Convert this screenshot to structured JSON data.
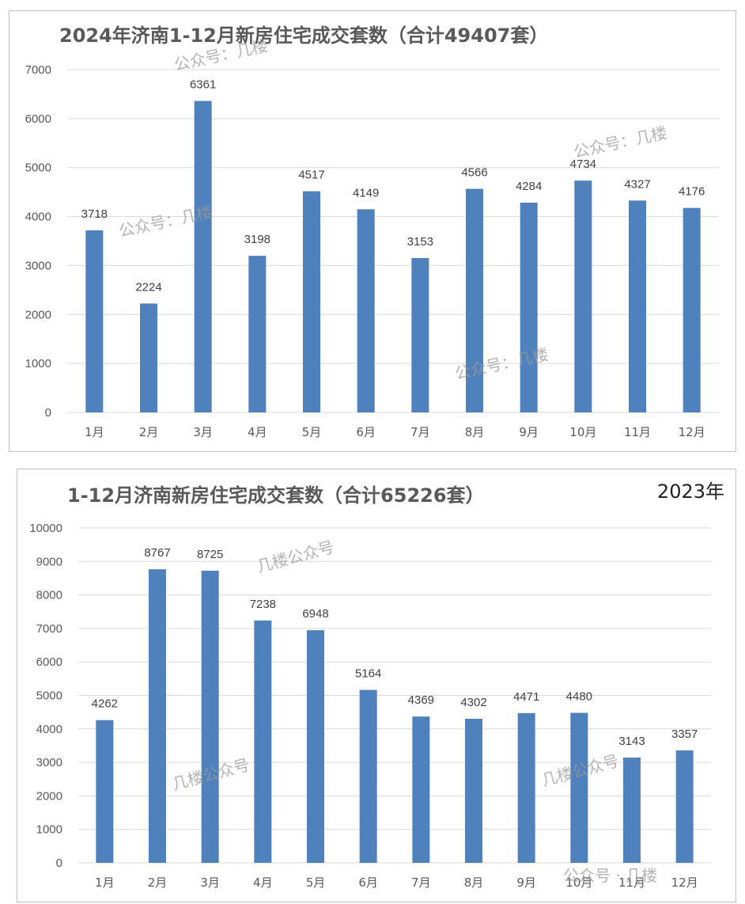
{
  "chart_data": [
    {
      "type": "bar",
      "title": "2024年济南1-12月新房住宅成交套数（合计49407套）",
      "categories": [
        "1月",
        "2月",
        "3月",
        "4月",
        "5月",
        "6月",
        "7月",
        "8月",
        "9月",
        "10月",
        "11月",
        "12月"
      ],
      "values": [
        3718,
        2224,
        6361,
        3198,
        4517,
        4149,
        3153,
        4566,
        4284,
        4734,
        4327,
        4176
      ],
      "ylim": [
        0,
        7000
      ],
      "yticks": [
        0,
        1000,
        2000,
        3000,
        4000,
        5000,
        6000,
        7000
      ],
      "grid": true,
      "bar_color": "#4F81BD",
      "watermarks": [
        "公众号：几楼",
        "公众号：几楼",
        "公众号：几楼",
        "公众号：几楼"
      ]
    },
    {
      "type": "bar",
      "title": "1-12月济南新房住宅成交套数（合计65226套）",
      "year_label": "2023年",
      "categories": [
        "1月",
        "2月",
        "3月",
        "4月",
        "5月",
        "6月",
        "7月",
        "8月",
        "9月",
        "10月",
        "11月",
        "12月"
      ],
      "values": [
        4262,
        8767,
        8725,
        7238,
        6948,
        5164,
        4369,
        4302,
        4471,
        4480,
        3143,
        3357
      ],
      "ylim": [
        0,
        10000
      ],
      "yticks": [
        0,
        1000,
        2000,
        3000,
        4000,
        5000,
        6000,
        7000,
        8000,
        9000,
        10000
      ],
      "grid": true,
      "bar_color": "#4F81BD",
      "watermarks": [
        "几楼公众号",
        "几楼公众号",
        "几楼公众号",
        "公众号 · 几楼"
      ]
    }
  ]
}
